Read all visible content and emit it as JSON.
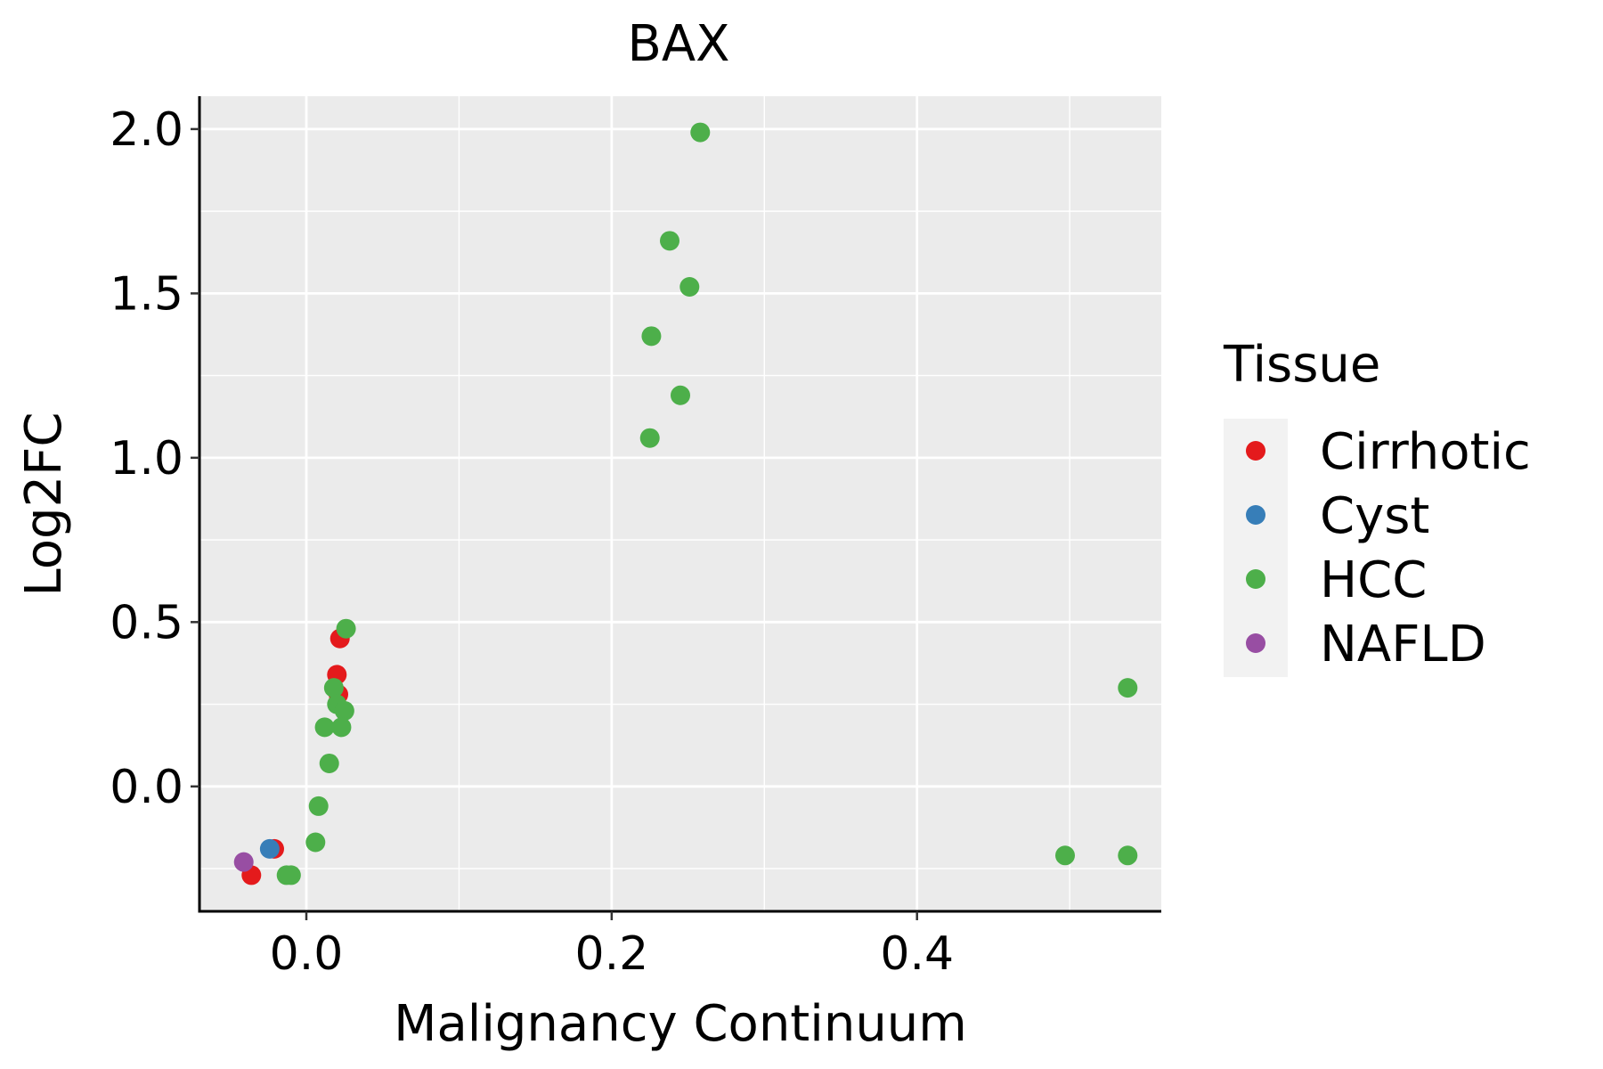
{
  "chart_data": {
    "type": "scatter",
    "title": "BAX",
    "xlabel": "Malignancy Continuum",
    "ylabel": "Log2FC",
    "xlim": [
      -0.07,
      0.56
    ],
    "ylim": [
      -0.38,
      2.1
    ],
    "x_ticks": [
      0.0,
      0.2,
      0.4
    ],
    "x_tick_labels": [
      "0.0",
      "0.2",
      "0.4"
    ],
    "y_ticks": [
      0.0,
      0.5,
      1.0,
      1.5,
      2.0
    ],
    "y_tick_labels": [
      "0.0",
      "0.5",
      "1.0",
      "1.5",
      "2.0"
    ],
    "grid": true,
    "legend": {
      "title": "Tissue",
      "position": "right"
    },
    "series": [
      {
        "name": "Cirrhotic",
        "color": "#E41A1C",
        "points": [
          {
            "x": -0.036,
            "y": -0.27
          },
          {
            "x": -0.021,
            "y": -0.19
          },
          {
            "x": 0.021,
            "y": 0.28
          },
          {
            "x": 0.02,
            "y": 0.34
          },
          {
            "x": 0.022,
            "y": 0.45
          }
        ]
      },
      {
        "name": "Cyst",
        "color": "#377EB8",
        "points": [
          {
            "x": -0.024,
            "y": -0.19
          }
        ]
      },
      {
        "name": "HCC",
        "color": "#4DAF4A",
        "points": [
          {
            "x": 0.258,
            "y": 1.99
          },
          {
            "x": 0.238,
            "y": 1.66
          },
          {
            "x": 0.251,
            "y": 1.52
          },
          {
            "x": 0.226,
            "y": 1.37
          },
          {
            "x": 0.245,
            "y": 1.19
          },
          {
            "x": 0.225,
            "y": 1.06
          },
          {
            "x": 0.026,
            "y": 0.48
          },
          {
            "x": 0.018,
            "y": 0.3
          },
          {
            "x": 0.02,
            "y": 0.25
          },
          {
            "x": 0.025,
            "y": 0.23
          },
          {
            "x": 0.012,
            "y": 0.18
          },
          {
            "x": 0.023,
            "y": 0.18
          },
          {
            "x": 0.015,
            "y": 0.07
          },
          {
            "x": 0.008,
            "y": -0.06
          },
          {
            "x": 0.006,
            "y": -0.17
          },
          {
            "x": -0.013,
            "y": -0.27
          },
          {
            "x": -0.01,
            "y": -0.27
          },
          {
            "x": 0.538,
            "y": 0.3
          },
          {
            "x": 0.497,
            "y": -0.21
          },
          {
            "x": 0.538,
            "y": -0.21
          }
        ]
      },
      {
        "name": "NAFLD",
        "color": "#984EA3",
        "points": [
          {
            "x": -0.041,
            "y": -0.23
          }
        ]
      }
    ]
  }
}
